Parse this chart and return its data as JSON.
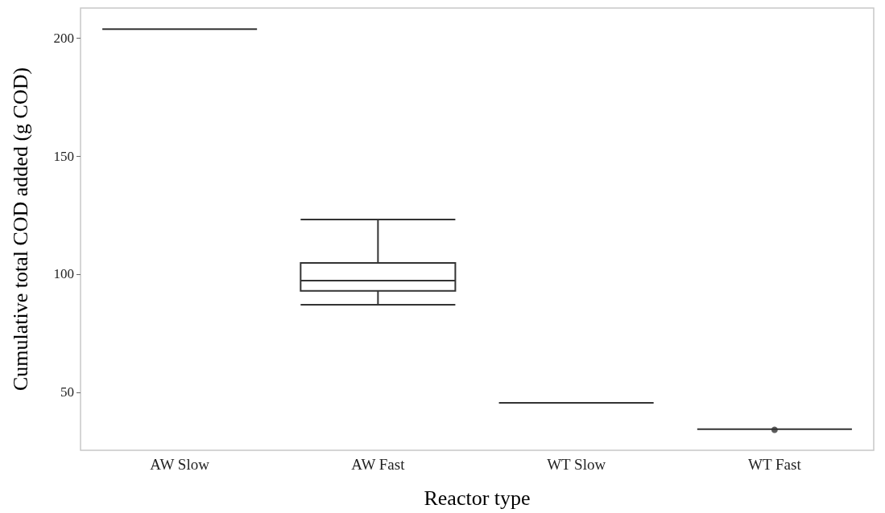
{
  "chart_data": {
    "type": "box",
    "xlabel": "Reactor type",
    "ylabel": "Cumulative total COD added (g COD)",
    "categories": [
      "AW Slow",
      "AW Fast",
      "WT Slow",
      "WT Fast"
    ],
    "boxes": [
      {
        "low": 203.7,
        "q1": 203.7,
        "median": 203.7,
        "q3": 203.7,
        "high": 203.7
      },
      {
        "low": 87.1,
        "q1": 92.9,
        "median": 97.3,
        "q3": 104.8,
        "high": 123.1
      },
      {
        "low": 45.6,
        "q1": 45.6,
        "median": 45.6,
        "q3": 45.6,
        "high": 45.6
      },
      {
        "low": 34.4,
        "q1": 34.4,
        "median": 34.4,
        "q3": 34.4,
        "high": 34.4,
        "outliers": [
          34.2
        ]
      }
    ],
    "color": "#333333",
    "ylim": [
      25.5,
      212.6
    ],
    "yticks": [
      50,
      100,
      150,
      200
    ]
  }
}
